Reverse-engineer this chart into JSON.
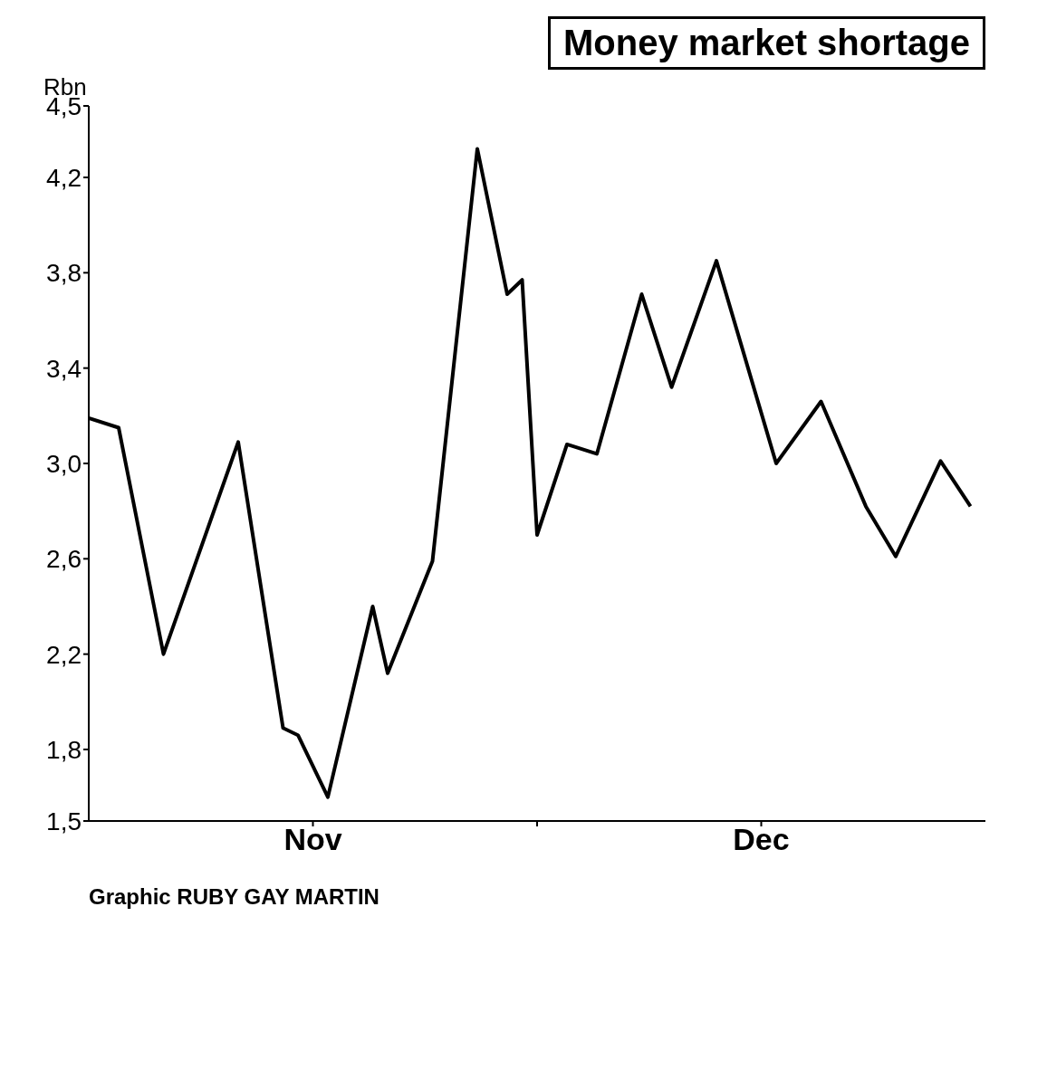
{
  "chart_data": {
    "type": "line",
    "title": "Money market shortage",
    "ylabel": "Rbn",
    "x": [
      "--11-01",
      "--11-03",
      "--11-06",
      "--11-11",
      "--11-14",
      "--11-15",
      "--11-17",
      "--11-20",
      "--11-21",
      "--11-24",
      "--11-27",
      "--11-29",
      "--11-30",
      "--12-01",
      "--12-03",
      "--12-05",
      "--12-08",
      "--12-10",
      "--12-13",
      "--12-17",
      "--12-20",
      "--12-23",
      "--12-25",
      "--12-28",
      "--12-30"
    ],
    "series": [
      {
        "color": "#000000",
        "values": [
          3.19,
          3.15,
          2.2,
          3.09,
          1.89,
          1.86,
          1.6,
          2.4,
          2.12,
          2.59,
          4.32,
          3.71,
          3.77,
          2.7,
          3.08,
          3.04,
          3.71,
          3.32,
          3.85,
          3.0,
          3.26,
          2.82,
          2.61,
          3.01,
          2.82
        ]
      }
    ],
    "xlim": [
      "--11-01",
      "--12-31"
    ],
    "xticks": [
      {
        "value": "--11-16",
        "label": "Nov"
      },
      {
        "value": "--12-01",
        "label": null
      },
      {
        "value": "--12-16",
        "label": "Dec"
      }
    ],
    "ylim": [
      1.5,
      4.5
    ],
    "yticks": [
      {
        "value": 1.5,
        "label": "1,5"
      },
      {
        "value": 1.8,
        "label": "1,8"
      },
      {
        "value": 2.2,
        "label": "2,2"
      },
      {
        "value": 2.6,
        "label": "2,6"
      },
      {
        "value": 3.0,
        "label": "3,0"
      },
      {
        "value": 3.4,
        "label": "3,4"
      },
      {
        "value": 3.8,
        "label": "3,8"
      },
      {
        "value": 4.2,
        "label": "4,2"
      },
      {
        "value": 4.5,
        "label": "4,5"
      }
    ],
    "annotations": [
      "Graphic  RUBY GAY MARTIN"
    ]
  }
}
